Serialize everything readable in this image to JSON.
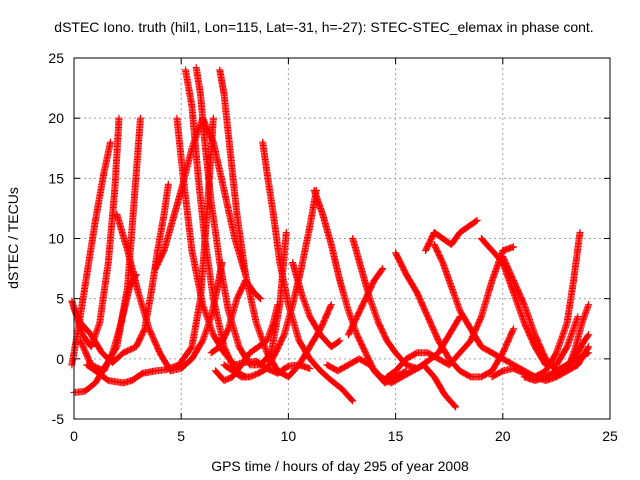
{
  "chart_data": {
    "type": "scatter",
    "title": "dSTEC Iono. truth (hil1, Lon=115, Lat=-31, h=-27): STEC-STEC_elemax in phase cont.",
    "xlabel": "GPS time / hours of day 295 of year 2008",
    "ylabel": "dSTEC  / TECUs",
    "xlim": [
      0,
      25
    ],
    "ylim": [
      -5,
      25
    ],
    "xticks": [
      "0",
      "5",
      "10",
      "15",
      "20",
      "25"
    ],
    "yticks": [
      "-5",
      "0",
      "5",
      "10",
      "15",
      "20",
      "25"
    ],
    "grid": true,
    "marker": "+",
    "color": "#ff0000",
    "series": [
      {
        "x": [
          -0.1,
          0.4,
          0.8,
          1.2,
          1.6,
          1.9,
          2.1
        ],
        "y": [
          4.8,
          2.0,
          1.0,
          3.0,
          8.0,
          14.0,
          20.0
        ]
      },
      {
        "x": [
          -0.1,
          0.2,
          0.6,
          1.0,
          1.4,
          1.7
        ],
        "y": [
          -0.5,
          2.5,
          7.0,
          11.5,
          15.5,
          18.0
        ]
      },
      {
        "x": [
          0.0,
          0.5,
          1.0,
          1.5,
          2.0,
          2.5,
          2.8,
          3.1
        ],
        "y": [
          -2.8,
          -2.7,
          -2.0,
          -0.5,
          1.0,
          6.0,
          13.0,
          20.0
        ]
      },
      {
        "x": [
          0.3,
          0.8,
          1.4,
          1.8,
          2.2,
          2.6,
          2.9
        ],
        "y": [
          1.5,
          -0.5,
          -1.0,
          0.5,
          3.0,
          6.0,
          7.0
        ]
      },
      {
        "x": [
          0.6,
          1.0,
          1.6,
          2.3,
          2.7,
          3.2,
          3.8,
          4.3,
          4.9,
          5.5,
          5.9,
          6.2,
          6.5
        ],
        "y": [
          -0.5,
          -1.0,
          -1.8,
          -2.0,
          -1.8,
          -1.2,
          -1.0,
          -0.9,
          -0.5,
          1.0,
          5.0,
          12.0,
          20.0
        ]
      },
      {
        "x": [
          0.0,
          0.3,
          0.8,
          1.3,
          1.8,
          2.3,
          2.9,
          3.3,
          3.6,
          3.9,
          4.2,
          4.4
        ],
        "y": [
          4.2,
          3.0,
          2.0,
          0.5,
          -0.3,
          0.5,
          1.0,
          2.5,
          5.5,
          9.0,
          12.0,
          14.5
        ]
      },
      {
        "x": [
          2.0,
          2.5,
          3.0,
          3.5,
          4.0,
          4.5,
          5.0,
          5.5,
          6.0,
          6.4,
          6.7,
          6.9
        ],
        "y": [
          12.0,
          9.0,
          5.5,
          2.5,
          0.5,
          -1.0,
          -0.8,
          0.0,
          1.5,
          3.5,
          6.0,
          8.0
        ]
      },
      {
        "x": [
          4.8,
          5.1,
          5.5,
          6.0,
          6.5,
          7.0,
          7.5,
          8.0,
          8.5,
          9.0,
          9.5,
          10.0,
          10.5,
          11.0
        ],
        "y": [
          20.0,
          15.0,
          9.0,
          4.5,
          2.0,
          0.5,
          -0.5,
          -0.3,
          -0.2,
          -0.8,
          -1.2,
          -0.6,
          -0.5,
          -0.8
        ]
      },
      {
        "x": [
          3.8,
          4.2,
          4.6,
          5.0,
          5.5,
          6.0,
          6.5,
          7.0,
          7.5,
          8.0
        ],
        "y": [
          7.5,
          9.0,
          11.5,
          14.0,
          17.5,
          20.0,
          18.0,
          14.0,
          10.0,
          7.0
        ]
      },
      {
        "x": [
          5.2,
          5.5,
          5.8,
          6.1,
          6.5,
          7.0,
          7.5,
          8.0
        ],
        "y": [
          24.0,
          21.0,
          15.0,
          10.0,
          5.0,
          1.0,
          -1.0,
          -1.5
        ]
      },
      {
        "x": [
          5.7,
          5.9,
          6.1,
          6.4,
          6.8,
          7.2,
          7.7,
          8.2,
          8.7,
          9.2,
          9.6,
          9.9
        ],
        "y": [
          24.2,
          22.0,
          18.0,
          13.0,
          8.0,
          4.0,
          1.0,
          -0.5,
          -0.5,
          0.5,
          4.5,
          10.5
        ]
      },
      {
        "x": [
          6.8,
          7.0,
          7.3,
          7.6,
          8.0,
          8.5,
          9.0,
          9.5,
          10.0,
          10.5,
          11.0,
          11.5,
          12.0
        ],
        "y": [
          24.0,
          22.0,
          17.0,
          12.0,
          7.0,
          3.0,
          0.5,
          -1.0,
          -1.5,
          -0.5,
          1.0,
          2.5,
          4.5
        ]
      },
      {
        "x": [
          6.4,
          6.8,
          7.2,
          7.6,
          8.0,
          8.4,
          8.7
        ],
        "y": [
          0.5,
          1.0,
          2.5,
          5.0,
          6.5,
          5.5,
          5.0
        ]
      },
      {
        "x": [
          8.8,
          9.0,
          9.3,
          9.6,
          10.0,
          10.5,
          11.0,
          11.5,
          12.0,
          12.5,
          13.0
        ],
        "y": [
          18.0,
          15.5,
          12.0,
          8.0,
          4.5,
          1.5,
          0.0,
          -1.0,
          -1.8,
          -2.5,
          -3.5
        ]
      },
      {
        "x": [
          6.6,
          7.0,
          7.4,
          7.8,
          8.2,
          8.6,
          9.0,
          9.3,
          9.5
        ],
        "y": [
          -1.0,
          -1.8,
          -1.5,
          -0.5,
          0.5,
          1.0,
          1.5,
          3.0,
          4.5
        ]
      },
      {
        "x": [
          7.0,
          7.4,
          7.8,
          8.2,
          8.6,
          9.0,
          9.4,
          9.8,
          10.2,
          10.6,
          11.0,
          11.3
        ],
        "y": [
          -0.5,
          -1.0,
          -1.5,
          -1.5,
          -1.2,
          -0.8,
          0.5,
          2.0,
          4.5,
          7.5,
          11.0,
          14.0
        ]
      },
      {
        "x": [
          10.2,
          10.6,
          11.0,
          11.5,
          12.0,
          12.4
        ],
        "y": [
          8.0,
          5.5,
          3.5,
          2.0,
          1.0,
          1.5
        ]
      },
      {
        "x": [
          11.2,
          11.6,
          12.0,
          12.4,
          12.8,
          13.2,
          13.6,
          14.0,
          14.5,
          15.0,
          15.5
        ],
        "y": [
          14.0,
          12.0,
          9.5,
          6.5,
          4.0,
          2.0,
          0.5,
          -1.0,
          -2.0,
          -1.5,
          -1.0
        ]
      },
      {
        "x": [
          11.8,
          12.3,
          12.8,
          13.3,
          13.8,
          14.3,
          14.8,
          15.3,
          15.8,
          16.3,
          16.8,
          17.3,
          17.8
        ],
        "y": [
          -0.5,
          -1.0,
          -0.5,
          0.0,
          -0.5,
          -1.5,
          -2.0,
          -1.5,
          -1.0,
          -0.5,
          -1.5,
          -3.0,
          -4.0
        ]
      },
      {
        "x": [
          13.0,
          13.4,
          13.8,
          14.2,
          14.6,
          15.0,
          15.5,
          16.0,
          16.5,
          17.0,
          17.5,
          18.0
        ],
        "y": [
          10.0,
          7.5,
          5.0,
          3.0,
          1.5,
          0.5,
          -0.5,
          -0.8,
          -0.2,
          0.5,
          2.0,
          3.5
        ]
      },
      {
        "x": [
          12.8,
          13.2,
          13.6,
          14.0,
          14.4
        ],
        "y": [
          2.0,
          3.5,
          5.0,
          6.5,
          7.5
        ]
      },
      {
        "x": [
          14.6,
          15.0,
          15.5,
          16.0,
          16.5,
          17.0,
          17.5,
          18.0,
          18.5,
          19.0,
          19.5,
          20.0,
          20.5
        ],
        "y": [
          -1.5,
          -1.0,
          0.0,
          0.5,
          0.5,
          0.0,
          -0.5,
          0.5,
          1.5,
          3.5,
          6.5,
          9.0,
          9.3
        ]
      },
      {
        "x": [
          15.0,
          15.5,
          16.0,
          16.5,
          17.0,
          17.5,
          18.0,
          18.5,
          19.0,
          19.5,
          20.0,
          20.5
        ],
        "y": [
          8.8,
          7.0,
          5.5,
          3.5,
          1.5,
          0.0,
          -1.0,
          -1.5,
          -1.5,
          -1.0,
          0.5,
          2.5
        ]
      },
      {
        "x": [
          16.4,
          16.8,
          17.2,
          17.6,
          18.0,
          18.4,
          18.8
        ],
        "y": [
          9.0,
          10.5,
          10.0,
          9.5,
          10.5,
          11.0,
          11.5
        ]
      },
      {
        "x": [
          16.8,
          17.2,
          17.6,
          18.0,
          18.5,
          19.0,
          19.5,
          20.0,
          20.5,
          21.0,
          21.5,
          22.0,
          22.5,
          23.0,
          23.5,
          24.0
        ],
        "y": [
          9.5,
          8.0,
          6.0,
          4.0,
          2.5,
          1.0,
          0.5,
          0.0,
          -0.5,
          -1.0,
          -1.5,
          -1.8,
          -1.5,
          -1.0,
          -0.5,
          1.0
        ]
      },
      {
        "x": [
          19.0,
          19.5,
          20.0,
          20.5,
          21.0,
          21.5,
          22.0,
          22.5,
          23.0,
          23.5
        ],
        "y": [
          10.0,
          9.0,
          8.0,
          5.5,
          3.0,
          1.0,
          -0.5,
          -0.5,
          1.0,
          3.5
        ]
      },
      {
        "x": [
          20.0,
          20.5,
          21.0,
          21.5,
          22.0,
          22.5,
          23.0,
          23.4,
          23.7,
          24.0
        ],
        "y": [
          8.5,
          6.5,
          4.5,
          2.0,
          0.0,
          -1.0,
          -1.0,
          1.0,
          3.0,
          4.5
        ]
      },
      {
        "x": [
          19.5,
          20.0,
          20.5,
          21.0,
          21.5,
          22.0,
          22.5,
          23.0,
          23.3,
          23.6
        ],
        "y": [
          -1.5,
          -1.0,
          -0.8,
          -1.2,
          -1.5,
          -1.0,
          0.5,
          3.0,
          6.5,
          10.5
        ]
      },
      {
        "x": [
          21.0,
          21.5,
          22.0,
          22.5,
          23.0,
          23.5,
          24.0
        ],
        "y": [
          -1.5,
          -1.8,
          -1.5,
          -1.0,
          -0.5,
          0.0,
          0.5
        ]
      },
      {
        "x": [
          22.5,
          23.0,
          23.5,
          23.8,
          24.0
        ],
        "y": [
          -1.0,
          -0.5,
          0.5,
          1.5,
          2.0
        ]
      }
    ]
  }
}
